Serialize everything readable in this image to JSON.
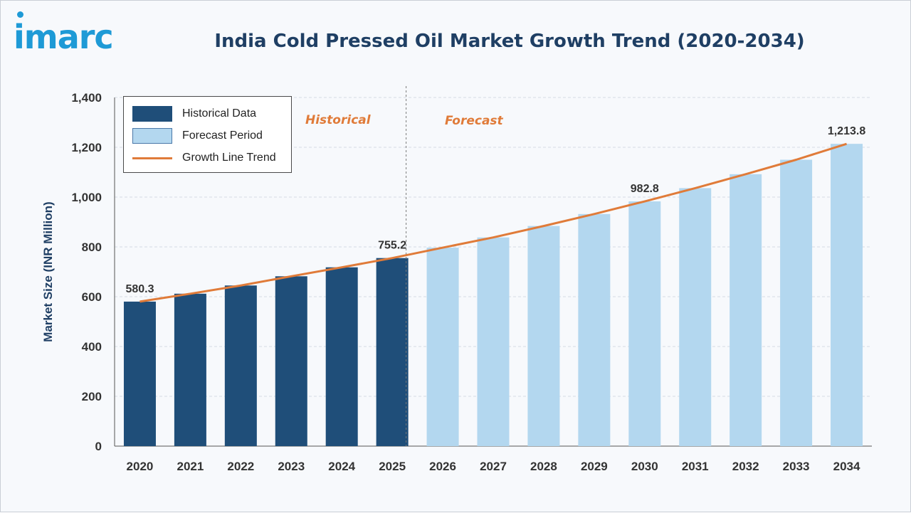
{
  "brand": {
    "logo_text": "imarc"
  },
  "colors": {
    "historical": "#1f4e79",
    "forecast": "#b3d7ef",
    "trend": "#e07b39",
    "axis_text": "#333333",
    "title": "#1f3f64"
  },
  "legend": {
    "historical": "Historical Data",
    "forecast": "Forecast Period",
    "trend": "Growth Line Trend"
  },
  "sections": {
    "historical": "Historical",
    "forecast": "Forecast"
  },
  "chart_data": {
    "type": "bar",
    "title": "India Cold Pressed Oil Market Growth Trend (2020-2034)",
    "xlabel": "",
    "ylabel": "Market Size (INR Million)",
    "ylim": [
      0,
      1400
    ],
    "yticks": [
      "0",
      "200",
      "400",
      "600",
      "800",
      "1,000",
      "1,200",
      "1,400"
    ],
    "categories": [
      "2020",
      "2021",
      "2022",
      "2023",
      "2024",
      "2025",
      "2026",
      "2027",
      "2028",
      "2029",
      "2030",
      "2031",
      "2032",
      "2033",
      "2034"
    ],
    "values": [
      580.3,
      612,
      645,
      682,
      718,
      755.2,
      797,
      838,
      884,
      932,
      982.8,
      1036,
      1092,
      1150,
      1213.8
    ],
    "period": [
      "historical",
      "historical",
      "historical",
      "historical",
      "historical",
      "historical",
      "forecast",
      "forecast",
      "forecast",
      "forecast",
      "forecast",
      "forecast",
      "forecast",
      "forecast",
      "forecast"
    ],
    "data_labels": [
      {
        "index": 0,
        "text": "580.3"
      },
      {
        "index": 5,
        "text": "755.2"
      },
      {
        "index": 10,
        "text": "982.8"
      },
      {
        "index": 14,
        "text": "1,213.8"
      }
    ],
    "trend_line": true,
    "grid": true,
    "legend_position": "top-left"
  }
}
